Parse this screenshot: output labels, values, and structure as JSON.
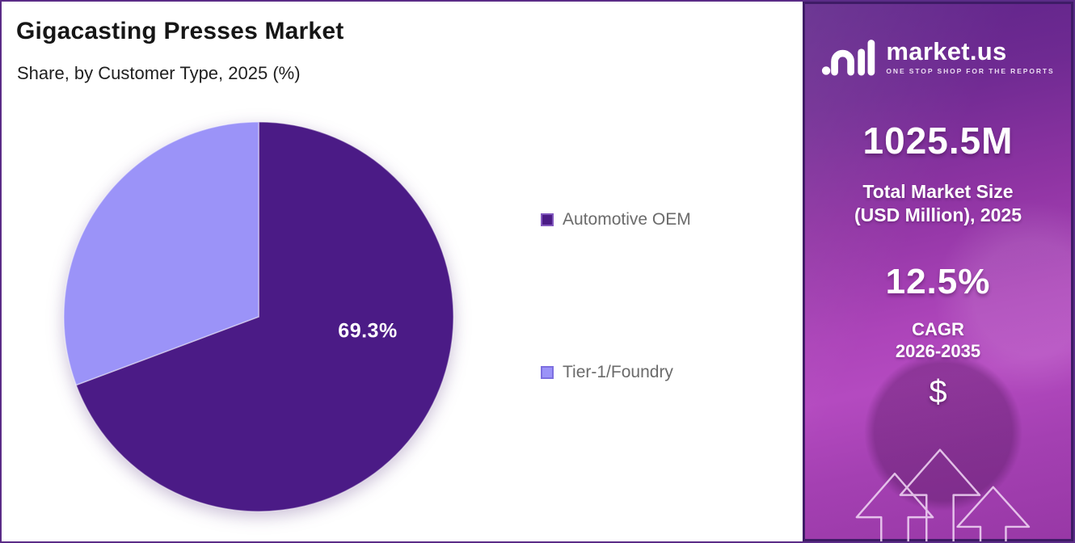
{
  "header": {
    "title": "Gigacasting Presses Market",
    "subtitle": "Share, by Customer Type, 2025 (%)"
  },
  "chart_data": {
    "type": "pie",
    "title": "Gigacasting Presses Market Share, by Customer Type, 2025 (%)",
    "labels": [
      "Automotive OEM",
      "Tier-1/Foundry"
    ],
    "values": [
      69.3,
      30.7
    ],
    "colors": [
      "#4B1B86",
      "#9B93F8"
    ],
    "marker_border_colors": [
      "#8257BE",
      "#7D6FE0"
    ],
    "slice_stroke": "rgba(255,255,255,0.45)",
    "start_angle_deg": 0,
    "direction": "clockwise",
    "slice_label": "69.3%",
    "labeled_slice": "Automotive OEM",
    "legend_position": "right"
  },
  "sidebar": {
    "brand": "market.us",
    "tagline": "ONE STOP SHOP FOR THE REPORTS",
    "market_size_value": "1025.5M",
    "market_size_label_line1": "Total Market Size",
    "market_size_label_line2": "(USD Million), 2025",
    "cagr_value": "12.5%",
    "cagr_label": "CAGR",
    "cagr_period": "2026-2035",
    "dollar_symbol": "$",
    "colors": {
      "panel_top": "#5E2489",
      "panel_bright": "#B44AC0",
      "panel_border": "#3E1C66",
      "arrow_outline": "#F2D9F6"
    }
  },
  "frame": {
    "border_color": "#5B2C87",
    "background": "#FFFFFF"
  }
}
